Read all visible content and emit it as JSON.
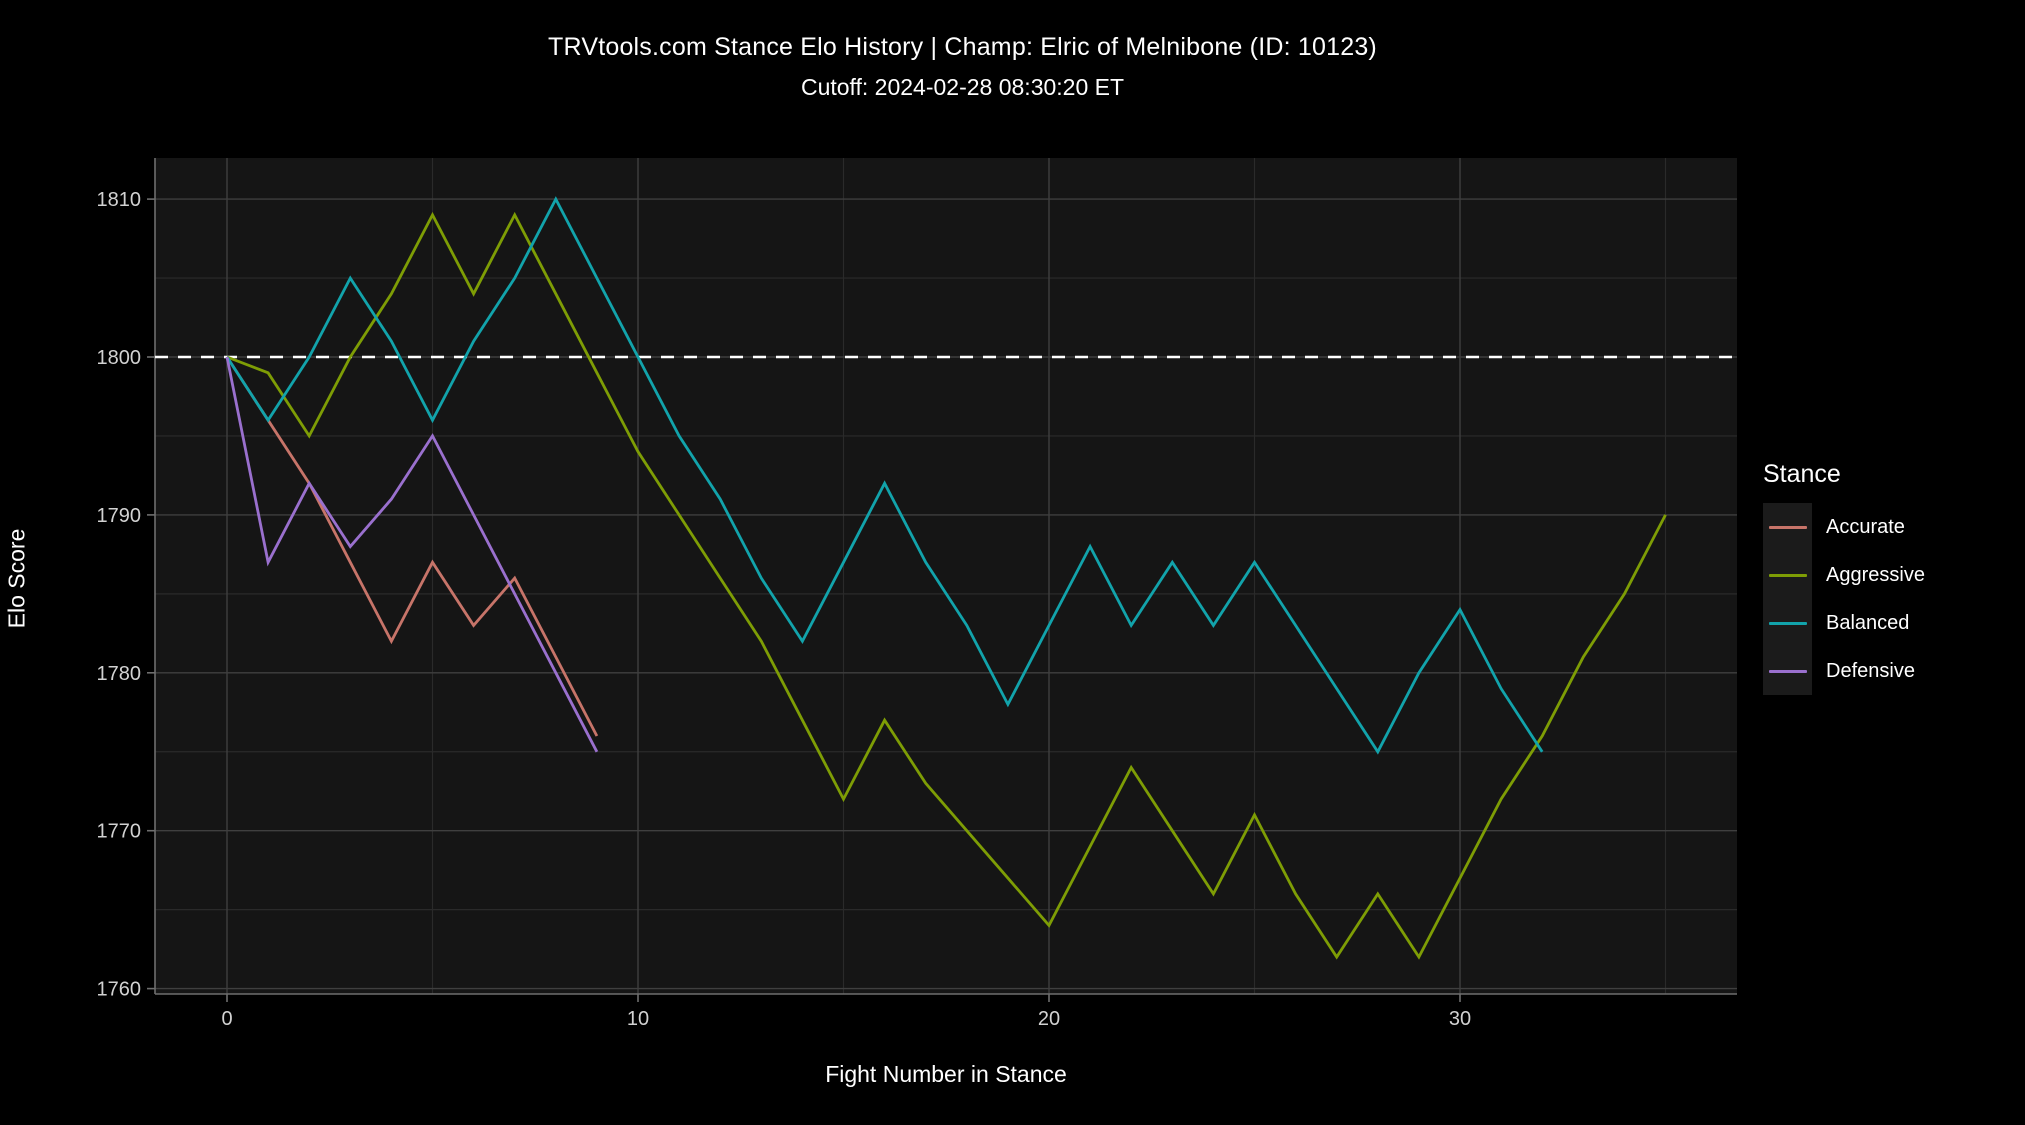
{
  "title": "TRVtools.com Stance Elo History  |  Champ: Elric of Melnibone (ID: 10123)",
  "subtitle": "Cutoff: 2024-02-28 08:30:20 ET",
  "chart_data": {
    "type": "line",
    "title": "TRVtools.com Stance Elo History  |  Champ: Elric of Melnibone (ID: 10123)",
    "subtitle": "Cutoff: 2024-02-28 08:30:20 ET",
    "xlabel": "Fight Number in Stance",
    "ylabel": "Elo Score",
    "xlim": [
      -1.75,
      36.75
    ],
    "ylim": [
      1759.6,
      1812.6
    ],
    "x_major_ticks": [
      0,
      10,
      20,
      30
    ],
    "x_minor_ticks": [
      5,
      15,
      25,
      35
    ],
    "y_major_ticks": [
      1760,
      1770,
      1780,
      1790,
      1800,
      1810
    ],
    "y_minor_ticks": [
      1765,
      1775,
      1785,
      1795,
      1805
    ],
    "grid": "on",
    "reference_line": {
      "y": 1800,
      "style": "dashed",
      "color": "#ffffff"
    },
    "legend": {
      "title": "Stance",
      "position": "right"
    },
    "series": [
      {
        "name": "Accurate",
        "color": "#c77469",
        "x_start": 0,
        "values": [
          1800,
          1796,
          1792,
          1787,
          1782,
          1787,
          1783,
          1786,
          1781,
          1776
        ]
      },
      {
        "name": "Aggressive",
        "color": "#7e9d05",
        "x_start": 0,
        "values": [
          1800,
          1799,
          1795,
          1800,
          1804,
          1809,
          1804,
          1809,
          1804,
          1799,
          1794,
          1790,
          1786,
          1782,
          1777,
          1772,
          1777,
          1773,
          1770,
          1767,
          1764,
          1769,
          1774,
          1770,
          1766,
          1771,
          1766,
          1762,
          1766,
          1762,
          1767,
          1772,
          1776,
          1781,
          1785,
          1790
        ]
      },
      {
        "name": "Balanced",
        "color": "#12a3ab",
        "x_start": 0,
        "values": [
          1800,
          1796,
          1800,
          1805,
          1801,
          1796,
          1801,
          1805,
          1810,
          1805,
          1800,
          1795,
          1791,
          1786,
          1782,
          1787,
          1792,
          1787,
          1783,
          1778,
          1783,
          1788,
          1783,
          1787,
          1783,
          1787,
          1783,
          1779,
          1775,
          1780,
          1784,
          1779,
          1775
        ]
      },
      {
        "name": "Defensive",
        "color": "#9a70ce",
        "x_start": 0,
        "values": [
          1800,
          1787,
          1792,
          1788,
          1791,
          1795,
          1790,
          1785,
          1780,
          1775
        ]
      }
    ]
  },
  "colors": {
    "page_background": "#000000",
    "panel_background": "#151515",
    "grid_major": "#3f3f3f",
    "grid_minor": "#2a2a2a",
    "axis_line": "#6e6e6e",
    "tick_label": "#d2d2d2",
    "title_text": "#ffffff"
  }
}
